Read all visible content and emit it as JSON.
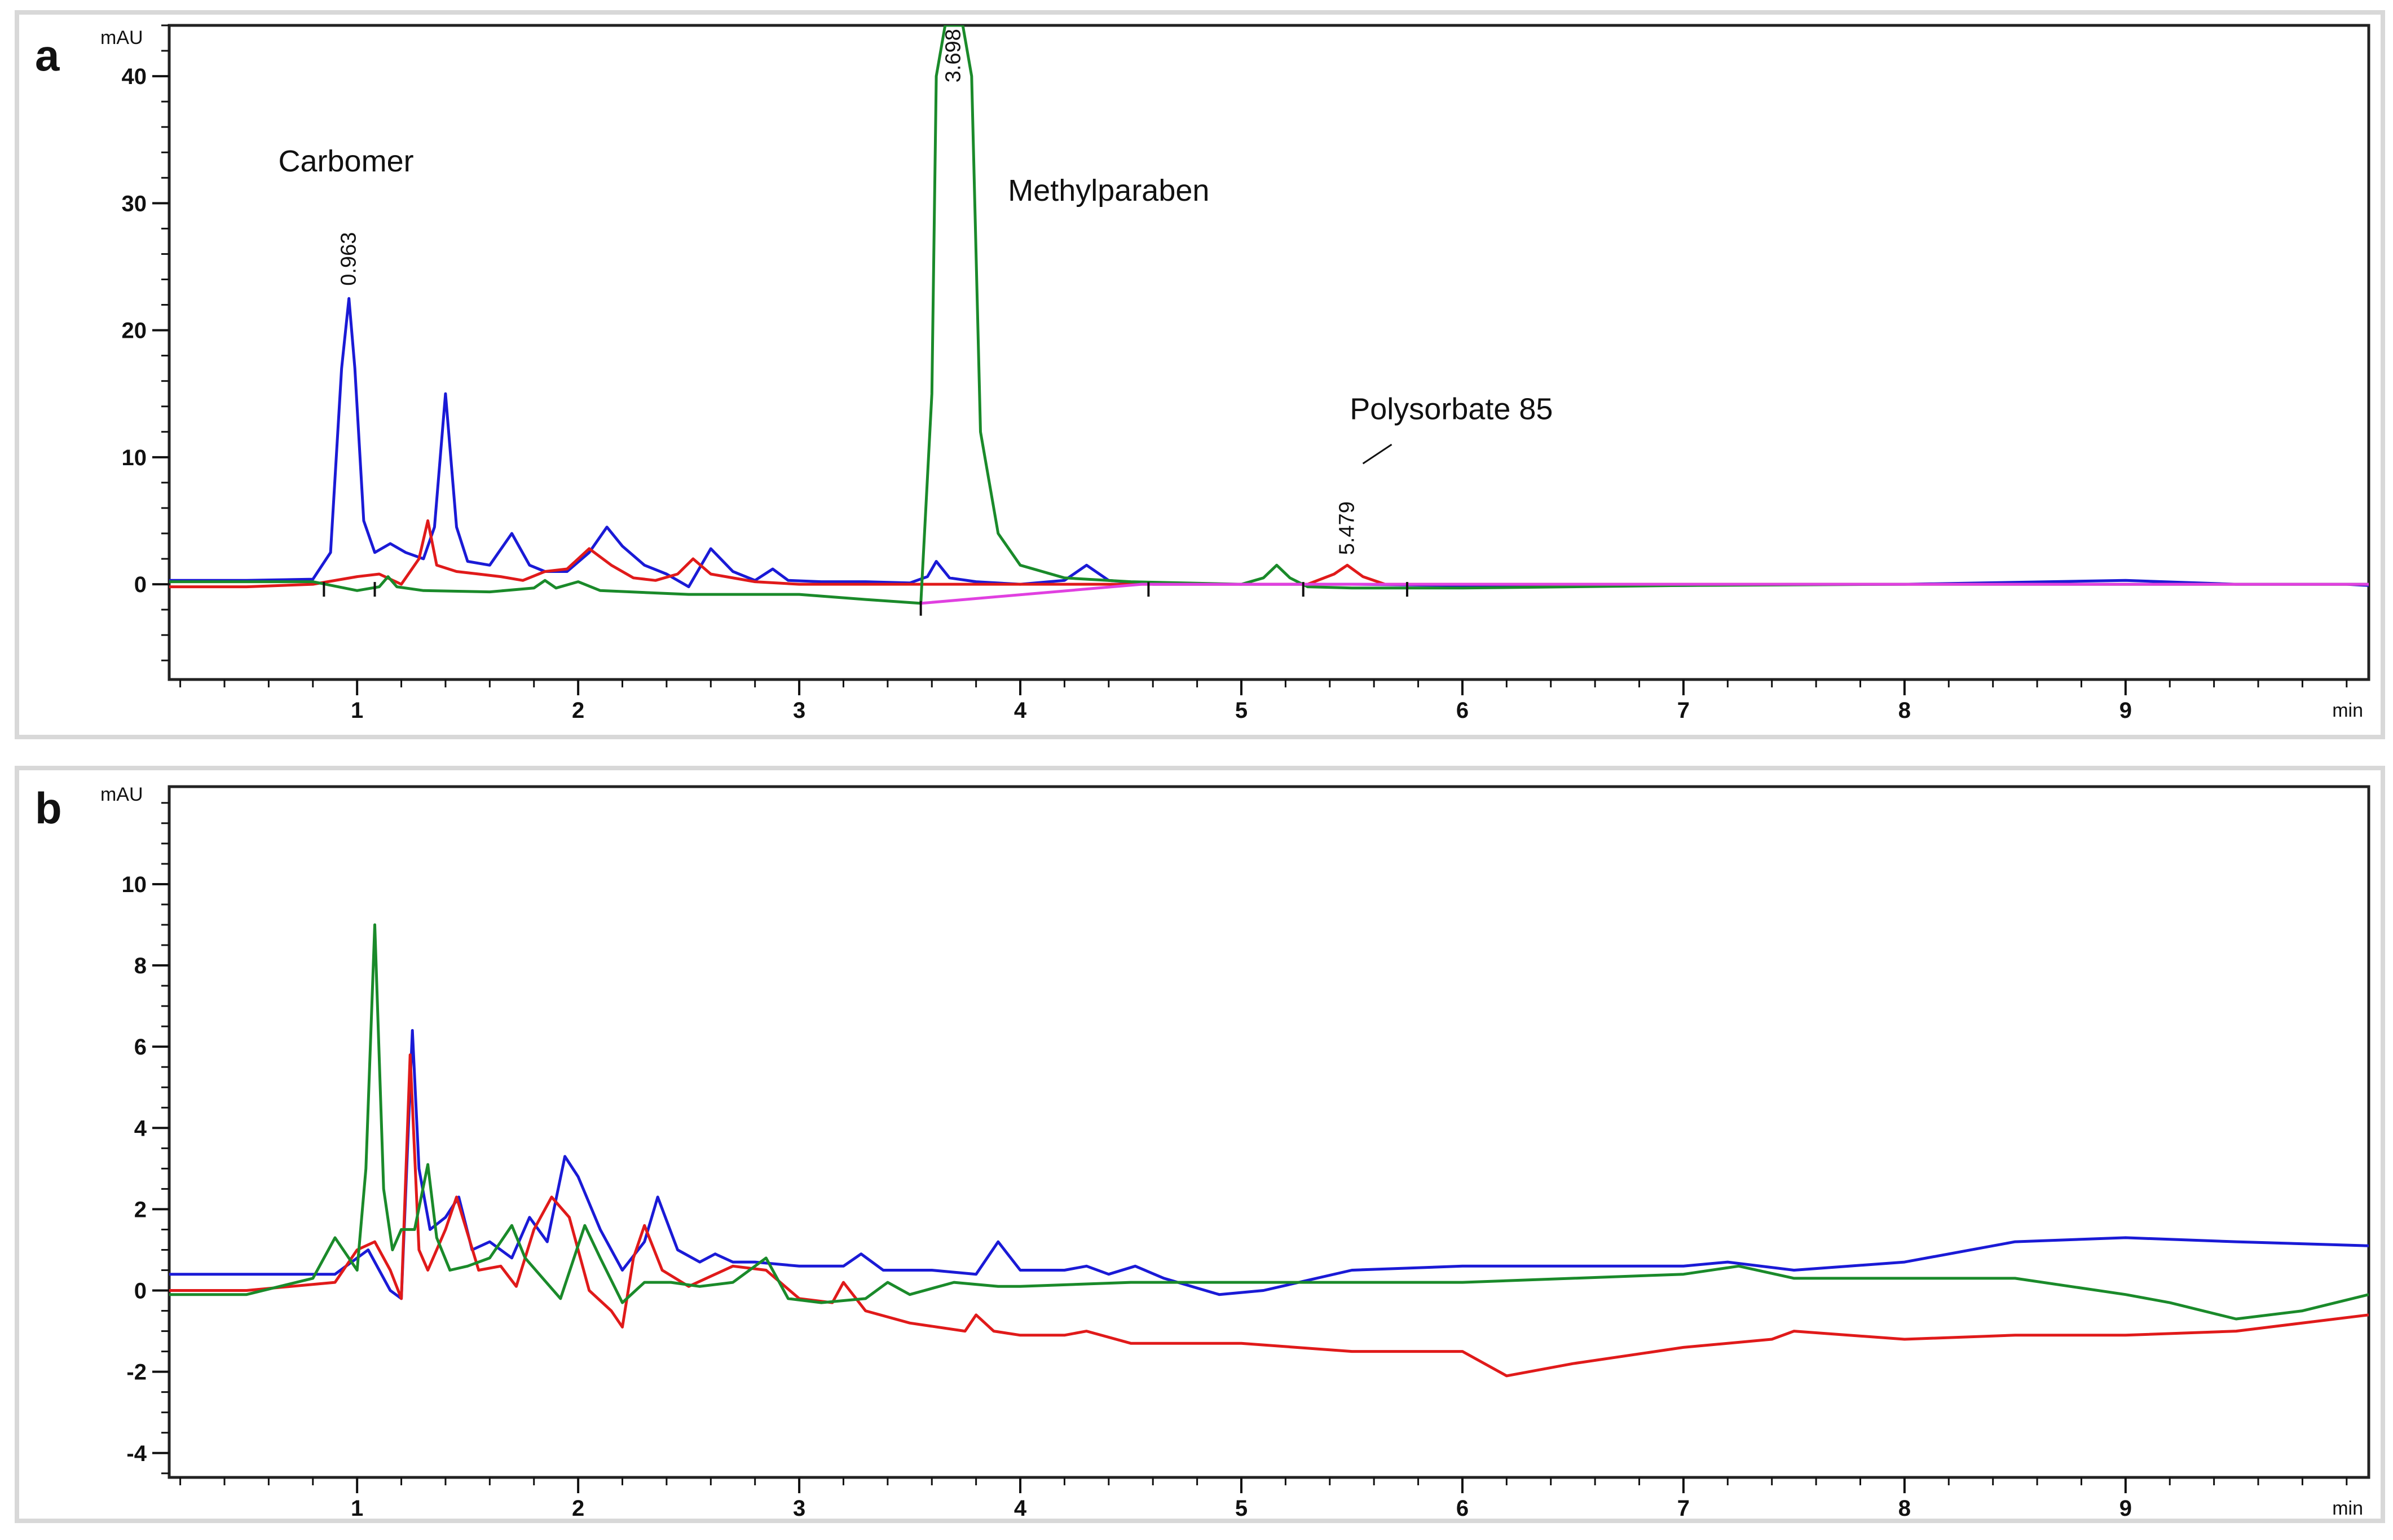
{
  "chart_data": [
    {
      "type": "line",
      "panel_label": "a",
      "ylabel": "mAU",
      "xlabel": "min",
      "xlim": [
        0.15,
        10.1
      ],
      "ylim": [
        -7.5,
        44
      ],
      "grid": false,
      "yticks": [
        0,
        10,
        20,
        30,
        40
      ],
      "yminor_step": 2,
      "xticks": [
        1,
        2,
        3,
        4,
        5,
        6,
        7,
        8,
        9
      ],
      "xminor_step": 0.2,
      "annotations": [
        {
          "text": "Carbomer",
          "x": 0.95,
          "y": 32.5
        },
        {
          "text": "Methylparaben",
          "x": 4.4,
          "y": 30.2
        },
        {
          "text": "Polysorbate 85",
          "x": 5.95,
          "y": 13.0
        }
      ],
      "peak_labels": [
        {
          "text": "0.963",
          "x": 0.963,
          "y": 23.5
        },
        {
          "text": "3.698",
          "x": 3.698,
          "y": 39.5
        },
        {
          "text": "5.479",
          "x": 5.479,
          "y": 2.3
        }
      ],
      "series": [
        {
          "color": "#1a1ad6",
          "x": [
            0.15,
            0.5,
            0.8,
            0.88,
            0.93,
            0.963,
            0.99,
            1.03,
            1.08,
            1.15,
            1.22,
            1.3,
            1.35,
            1.4,
            1.45,
            1.5,
            1.6,
            1.7,
            1.78,
            1.85,
            1.95,
            2.05,
            2.13,
            2.2,
            2.3,
            2.4,
            2.5,
            2.6,
            2.7,
            2.8,
            2.88,
            2.95,
            3.1,
            3.3,
            3.5,
            3.58,
            3.62,
            3.68,
            3.8,
            4.0,
            4.2,
            4.3,
            4.4,
            4.6,
            5.0,
            5.5,
            6.0,
            7.0,
            7.5,
            8.0,
            9.0,
            9.5,
            10.0,
            10.1
          ],
          "y": [
            0.3,
            0.3,
            0.4,
            2.5,
            17.0,
            22.5,
            17.0,
            5.0,
            2.5,
            3.2,
            2.5,
            2.0,
            4.5,
            15.0,
            4.5,
            1.8,
            1.5,
            4.0,
            1.5,
            1.0,
            1.0,
            2.5,
            4.5,
            3.0,
            1.5,
            0.8,
            -0.2,
            2.8,
            1.0,
            0.3,
            1.2,
            0.3,
            0.2,
            0.2,
            0.1,
            0.6,
            1.8,
            0.5,
            0.2,
            0.0,
            0.3,
            1.5,
            0.3,
            0.0,
            0.0,
            0.0,
            -0.1,
            -0.1,
            0.0,
            0.0,
            0.3,
            0.0,
            0.0,
            -0.1
          ]
        },
        {
          "color": "#e01a1a",
          "x": [
            0.15,
            0.5,
            0.8,
            1.0,
            1.1,
            1.2,
            1.28,
            1.32,
            1.36,
            1.45,
            1.55,
            1.65,
            1.75,
            1.85,
            1.95,
            2.05,
            2.15,
            2.25,
            2.35,
            2.45,
            2.52,
            2.6,
            2.8,
            3.0,
            3.3,
            3.6,
            4.0,
            4.5,
            5.0,
            5.3,
            5.42,
            5.479,
            5.55,
            5.65,
            6.0,
            7.0,
            8.0,
            9.0,
            10.0,
            10.1
          ],
          "y": [
            -0.2,
            -0.2,
            0.0,
            0.6,
            0.8,
            0.0,
            2.0,
            5.0,
            1.5,
            1.0,
            0.8,
            0.6,
            0.3,
            1.0,
            1.2,
            2.8,
            1.5,
            0.5,
            0.3,
            0.8,
            2.0,
            0.8,
            0.2,
            0.0,
            0.0,
            0.0,
            0.0,
            0.0,
            0.0,
            0.0,
            0.8,
            1.5,
            0.6,
            0.0,
            0.0,
            0.0,
            0.0,
            0.0,
            0.0,
            0.0
          ]
        },
        {
          "color": "#1a8a2a",
          "x": [
            0.15,
            0.8,
            1.0,
            1.1,
            1.14,
            1.18,
            1.3,
            1.6,
            1.8,
            1.85,
            1.9,
            2.0,
            2.1,
            2.5,
            3.0,
            3.3,
            3.55,
            3.6,
            3.62,
            3.66,
            3.698,
            3.74,
            3.78,
            3.82,
            3.9,
            4.0,
            4.2,
            4.5,
            5.0,
            5.1,
            5.16,
            5.22,
            5.3,
            5.5,
            6.0,
            7.0,
            8.0,
            9.0,
            10.0,
            10.1
          ],
          "y": [
            0.2,
            0.2,
            -0.5,
            -0.2,
            0.6,
            -0.2,
            -0.5,
            -0.6,
            -0.3,
            0.3,
            -0.3,
            0.2,
            -0.5,
            -0.8,
            -0.8,
            -1.2,
            -1.5,
            15.0,
            40.0,
            44.0,
            44.0,
            44.0,
            40.0,
            12.0,
            4.0,
            1.5,
            0.5,
            0.2,
            0.0,
            0.5,
            1.5,
            0.5,
            -0.2,
            -0.3,
            -0.3,
            -0.1,
            0.0,
            0.0,
            0.0,
            0.0
          ]
        },
        {
          "color": "#e040e0",
          "x": [
            3.55,
            4.55,
            10.1
          ],
          "y": [
            -1.5,
            0.0,
            0.0
          ]
        }
      ],
      "baseline_markers": [
        0.85,
        1.08,
        3.55,
        4.58,
        5.28,
        5.75
      ]
    },
    {
      "type": "line",
      "panel_label": "b",
      "ylabel": "mAU",
      "xlabel": "min",
      "xlim": [
        0.15,
        10.1
      ],
      "ylim": [
        -4.6,
        12.4
      ],
      "grid": false,
      "yticks": [
        -4,
        -2,
        0,
        2,
        4,
        6,
        8,
        10
      ],
      "yminor_step": 0.5,
      "xticks": [
        1,
        2,
        3,
        4,
        5,
        6,
        7,
        8,
        9
      ],
      "xminor_step": 0.2,
      "series": [
        {
          "color": "#1a1ad6",
          "x": [
            0.15,
            0.5,
            0.9,
            1.05,
            1.15,
            1.2,
            1.25,
            1.28,
            1.33,
            1.4,
            1.46,
            1.52,
            1.6,
            1.7,
            1.78,
            1.86,
            1.94,
            2.0,
            2.1,
            2.2,
            2.3,
            2.36,
            2.45,
            2.55,
            2.62,
            2.7,
            2.8,
            3.0,
            3.2,
            3.28,
            3.38,
            3.6,
            3.8,
            3.9,
            4.0,
            4.2,
            4.3,
            4.4,
            4.52,
            4.65,
            4.9,
            5.1,
            5.5,
            6.0,
            6.5,
            7.0,
            7.2,
            7.5,
            8.0,
            8.5,
            9.0,
            9.5,
            10.1
          ],
          "y": [
            0.4,
            0.4,
            0.4,
            1.0,
            0.0,
            -0.2,
            6.4,
            3.0,
            1.5,
            1.8,
            2.3,
            1.0,
            1.2,
            0.8,
            1.8,
            1.2,
            3.3,
            2.8,
            1.5,
            0.5,
            1.2,
            2.3,
            1.0,
            0.7,
            0.9,
            0.7,
            0.7,
            0.6,
            0.6,
            0.9,
            0.5,
            0.5,
            0.4,
            1.2,
            0.5,
            0.5,
            0.6,
            0.4,
            0.6,
            0.3,
            -0.1,
            0.0,
            0.5,
            0.6,
            0.6,
            0.6,
            0.7,
            0.5,
            0.7,
            1.2,
            1.3,
            1.2,
            1.1
          ]
        },
        {
          "color": "#e01a1a",
          "x": [
            0.15,
            0.5,
            0.9,
            1.0,
            1.08,
            1.15,
            1.2,
            1.24,
            1.28,
            1.32,
            1.4,
            1.45,
            1.55,
            1.65,
            1.72,
            1.8,
            1.88,
            1.96,
            2.05,
            2.15,
            2.2,
            2.25,
            2.3,
            2.38,
            2.5,
            2.7,
            2.85,
            3.0,
            3.15,
            3.2,
            3.3,
            3.5,
            3.75,
            3.8,
            3.88,
            4.0,
            4.2,
            4.3,
            4.5,
            5.0,
            5.5,
            6.0,
            6.2,
            6.5,
            7.0,
            7.4,
            7.5,
            8.0,
            8.5,
            9.0,
            9.5,
            10.1
          ],
          "y": [
            0.0,
            0.0,
            0.2,
            1.0,
            1.2,
            0.5,
            -0.2,
            5.8,
            1.0,
            0.5,
            1.5,
            2.3,
            0.5,
            0.6,
            0.1,
            1.5,
            2.3,
            1.8,
            0.0,
            -0.5,
            -0.9,
            0.8,
            1.6,
            0.5,
            0.1,
            0.6,
            0.5,
            -0.2,
            -0.3,
            0.2,
            -0.5,
            -0.8,
            -1.0,
            -0.6,
            -1.0,
            -1.1,
            -1.1,
            -1.0,
            -1.3,
            -1.3,
            -1.5,
            -1.5,
            -2.1,
            -1.8,
            -1.4,
            -1.2,
            -1.0,
            -1.2,
            -1.1,
            -1.1,
            -1.0,
            -0.6
          ]
        },
        {
          "color": "#1a8a2a",
          "x": [
            0.15,
            0.5,
            0.8,
            0.9,
            1.0,
            1.04,
            1.08,
            1.12,
            1.16,
            1.2,
            1.26,
            1.32,
            1.36,
            1.42,
            1.5,
            1.6,
            1.7,
            1.76,
            1.84,
            1.92,
            2.03,
            2.1,
            2.2,
            2.3,
            2.42,
            2.55,
            2.7,
            2.85,
            2.95,
            3.1,
            3.3,
            3.4,
            3.5,
            3.7,
            3.9,
            4.0,
            4.5,
            5.0,
            5.5,
            6.0,
            6.5,
            7.0,
            7.25,
            7.5,
            8.0,
            8.5,
            9.0,
            9.2,
            9.5,
            9.8,
            10.1
          ],
          "y": [
            -0.1,
            -0.1,
            0.3,
            1.3,
            0.5,
            3.0,
            9.0,
            2.5,
            1.0,
            1.5,
            1.5,
            3.1,
            1.3,
            0.5,
            0.6,
            0.8,
            1.6,
            0.8,
            0.3,
            -0.2,
            1.6,
            0.8,
            -0.3,
            0.2,
            0.2,
            0.1,
            0.2,
            0.8,
            -0.2,
            -0.3,
            -0.2,
            0.2,
            -0.1,
            0.2,
            0.1,
            0.1,
            0.2,
            0.2,
            0.2,
            0.2,
            0.3,
            0.4,
            0.6,
            0.3,
            0.3,
            0.3,
            -0.1,
            -0.3,
            -0.7,
            -0.5,
            -0.1
          ]
        }
      ]
    }
  ]
}
